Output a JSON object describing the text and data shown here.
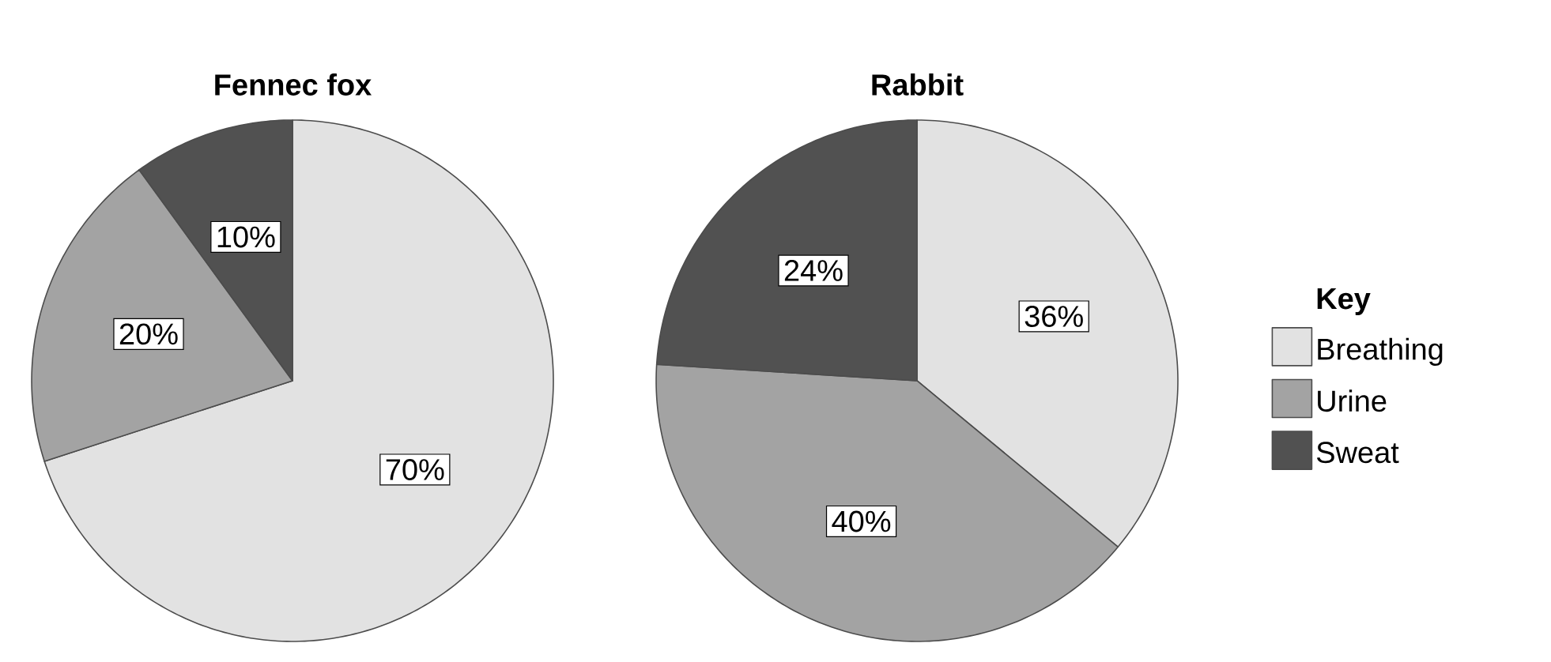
{
  "chart_data": [
    {
      "type": "pie",
      "title": "Fennec fox",
      "categories": [
        null,
        null,
        null
      ],
      "values": [
        70,
        20,
        10
      ],
      "value_labels": [
        "70%",
        "20%",
        "10%"
      ],
      "colors": [
        "#e2e2e2",
        "#a3a3a3",
        "#515151"
      ]
    },
    {
      "type": "pie",
      "title": "Rabbit",
      "categories": [
        "Breathing",
        "Urine",
        "Sweat"
      ],
      "values": [
        36,
        40,
        24
      ],
      "value_labels": [
        "36%",
        "40%",
        "24%"
      ],
      "colors": [
        "#e2e2e2",
        "#a3a3a3",
        "#515151"
      ],
      "legend": "right",
      "legend_title": "Key"
    }
  ]
}
